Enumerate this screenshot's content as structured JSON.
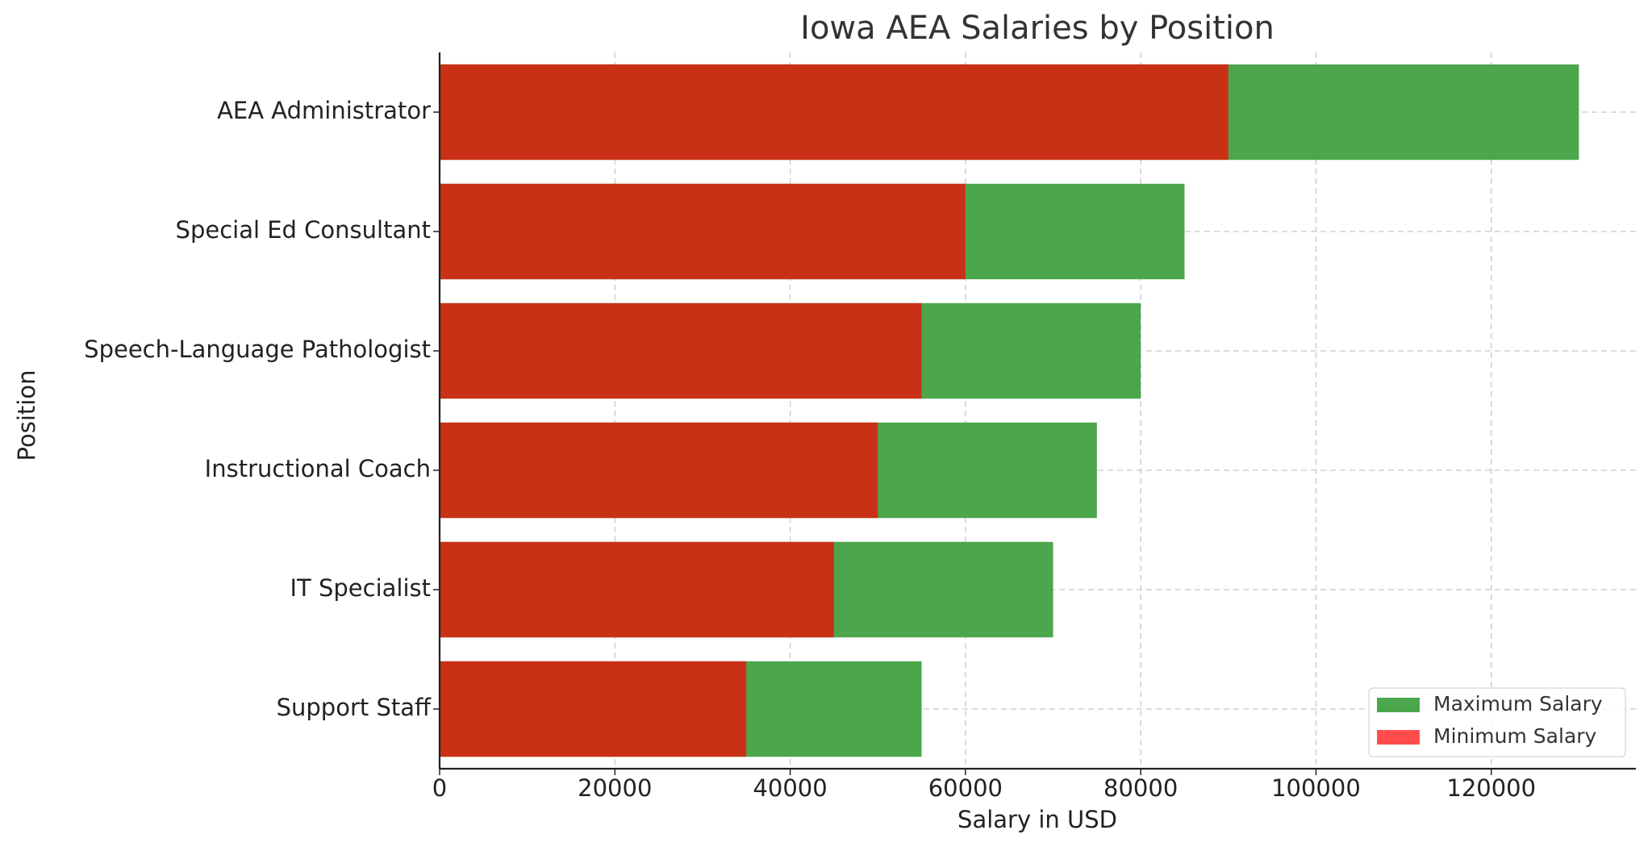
{
  "chart_data": {
    "type": "overlaid-barh",
    "title": "Iowa AEA Salaries by Position",
    "x_label": "Salary in USD",
    "y_label": "Position",
    "categories": [
      "AEA Administrator",
      "Special Ed Consultant",
      "Speech-Language Pathologist",
      "Instructional Coach",
      "IT Specialist",
      "Support Staff"
    ],
    "series": [
      {
        "name": "Maximum Salary",
        "color": "#4ca64c",
        "opacity": 1,
        "values": [
          130000,
          85000,
          80000,
          75000,
          70000,
          55000
        ]
      },
      {
        "name": "Minimum Salary",
        "color": "#ff0000",
        "opacity": 0.7,
        "values": [
          90000,
          60000,
          55000,
          50000,
          45000,
          35000
        ]
      }
    ],
    "xlim": [
      0,
      136500
    ],
    "xticks": [
      0,
      20000,
      40000,
      60000,
      80000,
      100000,
      120000
    ],
    "grid": true,
    "legend": "lower right"
  }
}
